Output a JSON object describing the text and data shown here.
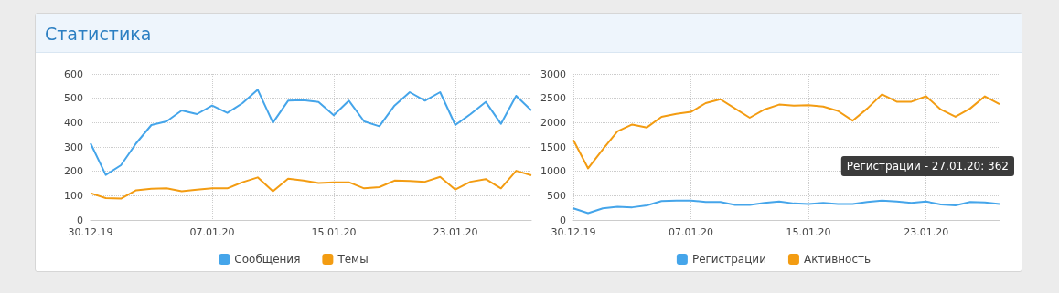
{
  "chart_data": [
    {
      "type": "line",
      "title": "Статистика",
      "categories": [
        "30.12.19",
        null,
        null,
        null,
        null,
        null,
        null,
        null,
        "07.01.20",
        null,
        null,
        null,
        null,
        null,
        null,
        null,
        "15.01.20",
        null,
        null,
        null,
        null,
        null,
        null,
        null,
        "23.01.20",
        null,
        null,
        null,
        null,
        null
      ],
      "series": [
        {
          "name": "Сообщения",
          "color": "#45a5ea",
          "values": [
            315,
            185,
            225,
            315,
            390,
            405,
            450,
            435,
            470,
            440,
            480,
            535,
            400,
            490,
            492,
            485,
            430,
            490,
            405,
            385,
            470,
            525,
            490,
            525,
            390,
            435,
            485,
            395,
            510,
            450
          ]
        },
        {
          "name": "Темы",
          "color": "#f39c12",
          "values": [
            110,
            90,
            88,
            122,
            128,
            130,
            118,
            125,
            130,
            130,
            155,
            175,
            118,
            170,
            162,
            152,
            155,
            155,
            130,
            135,
            162,
            160,
            157,
            177,
            125,
            157,
            168,
            130,
            202,
            184
          ]
        }
      ],
      "ylim": [
        0,
        600
      ],
      "yticks": [
        0,
        100,
        200,
        300,
        400,
        500,
        600
      ],
      "grid": true,
      "legend": "bottom",
      "marker": "none",
      "line_style": "solid"
    },
    {
      "type": "line",
      "categories": [
        "30.12.19",
        null,
        null,
        null,
        null,
        null,
        null,
        null,
        "07.01.20",
        null,
        null,
        null,
        null,
        null,
        null,
        null,
        "15.01.20",
        null,
        null,
        null,
        null,
        null,
        null,
        null,
        "23.01.20",
        null,
        null,
        null,
        null,
        null
      ],
      "series": [
        {
          "name": "Регистрации",
          "color": "#45a5ea",
          "values": [
            240,
            140,
            240,
            270,
            260,
            300,
            390,
            400,
            400,
            370,
            370,
            310,
            310,
            350,
            380,
            340,
            330,
            350,
            330,
            330,
            370,
            400,
            380,
            350,
            380,
            320,
            300,
            370,
            362,
            330
          ]
        },
        {
          "name": "Активность",
          "color": "#f39c12",
          "values": [
            1640,
            1060,
            1450,
            1820,
            1960,
            1900,
            2120,
            2180,
            2220,
            2400,
            2480,
            2290,
            2100,
            2270,
            2370,
            2350,
            2360,
            2330,
            2240,
            2040,
            2290,
            2580,
            2430,
            2430,
            2540,
            2270,
            2120,
            2290,
            2540,
            2380
          ]
        }
      ],
      "annotations": [
        "Регистрации - 27.01.20: 362"
      ],
      "ylim": [
        0,
        3000
      ],
      "yticks": [
        0,
        500,
        1000,
        1500,
        2000,
        2500,
        3000
      ],
      "grid": true,
      "legend": "bottom",
      "marker": "none",
      "line_style": "solid"
    }
  ]
}
